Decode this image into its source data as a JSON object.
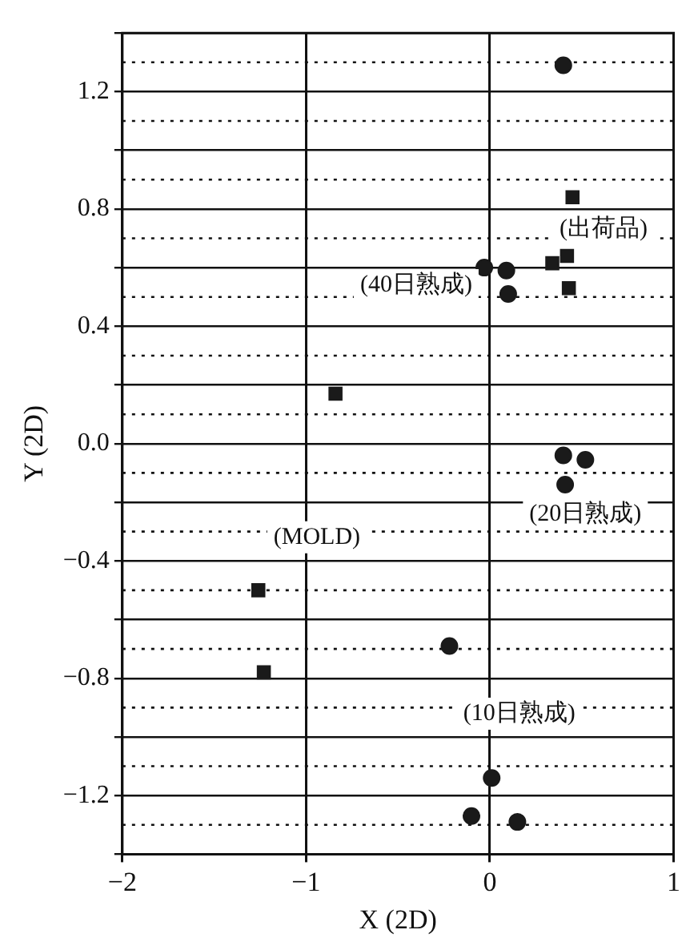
{
  "chart_data": {
    "type": "scatter",
    "xlabel": "X (2D)",
    "ylabel": "Y (2D)",
    "xlim": [
      -2,
      1
    ],
    "xticks": [
      {
        "value": -2,
        "label": "−2"
      },
      {
        "value": -1,
        "label": "−1"
      },
      {
        "value": 0,
        "label": "0"
      },
      {
        "value": 1,
        "label": "1"
      }
    ],
    "ylim": [
      -1.4,
      1.4
    ],
    "yticks": [
      {
        "value": -1.4,
        "label": null
      },
      {
        "value": -1.2,
        "label": "−1.2"
      },
      {
        "value": -1.0,
        "label": null
      },
      {
        "value": -0.8,
        "label": "−0.8"
      },
      {
        "value": -0.6,
        "label": null
      },
      {
        "value": -0.4,
        "label": "−0.4"
      },
      {
        "value": -0.2,
        "label": null
      },
      {
        "value": 0,
        "label": "0.0"
      },
      {
        "value": 0.2,
        "label": null
      },
      {
        "value": 0.4,
        "label": "0.4"
      },
      {
        "value": 0.6,
        "label": null
      },
      {
        "value": 0.8,
        "label": "0.8"
      },
      {
        "value": 1.0,
        "label": null
      },
      {
        "value": 1.2,
        "label": "1.2"
      },
      {
        "value": 1.4,
        "label": null
      }
    ],
    "grid": true,
    "legend": false,
    "series": [
      {
        "color": "#1a1a1a",
        "marker": "circle",
        "x": [
          0.4,
          -0.03,
          0.09,
          0.1,
          0.4,
          0.52,
          0.41,
          -0.22,
          0.01,
          -0.1,
          0.15
        ],
        "values": [
          1.29,
          0.6,
          0.59,
          0.51,
          -0.04,
          -0.055,
          -0.14,
          -0.69,
          -1.14,
          -1.27,
          -1.29
        ]
      },
      {
        "color": "#1a1a1a",
        "marker": "square",
        "x": [
          0.45,
          0.42,
          0.34,
          0.43,
          -0.84,
          -1.26,
          -1.23
        ],
        "values": [
          0.84,
          0.64,
          0.615,
          0.53,
          0.17,
          -0.5,
          -0.78
        ]
      }
    ],
    "annotations": [
      "(出荷品)",
      "(40日熟成)",
      "(20日熟成)",
      "(MOLD)",
      "(10日熟成)"
    ]
  }
}
